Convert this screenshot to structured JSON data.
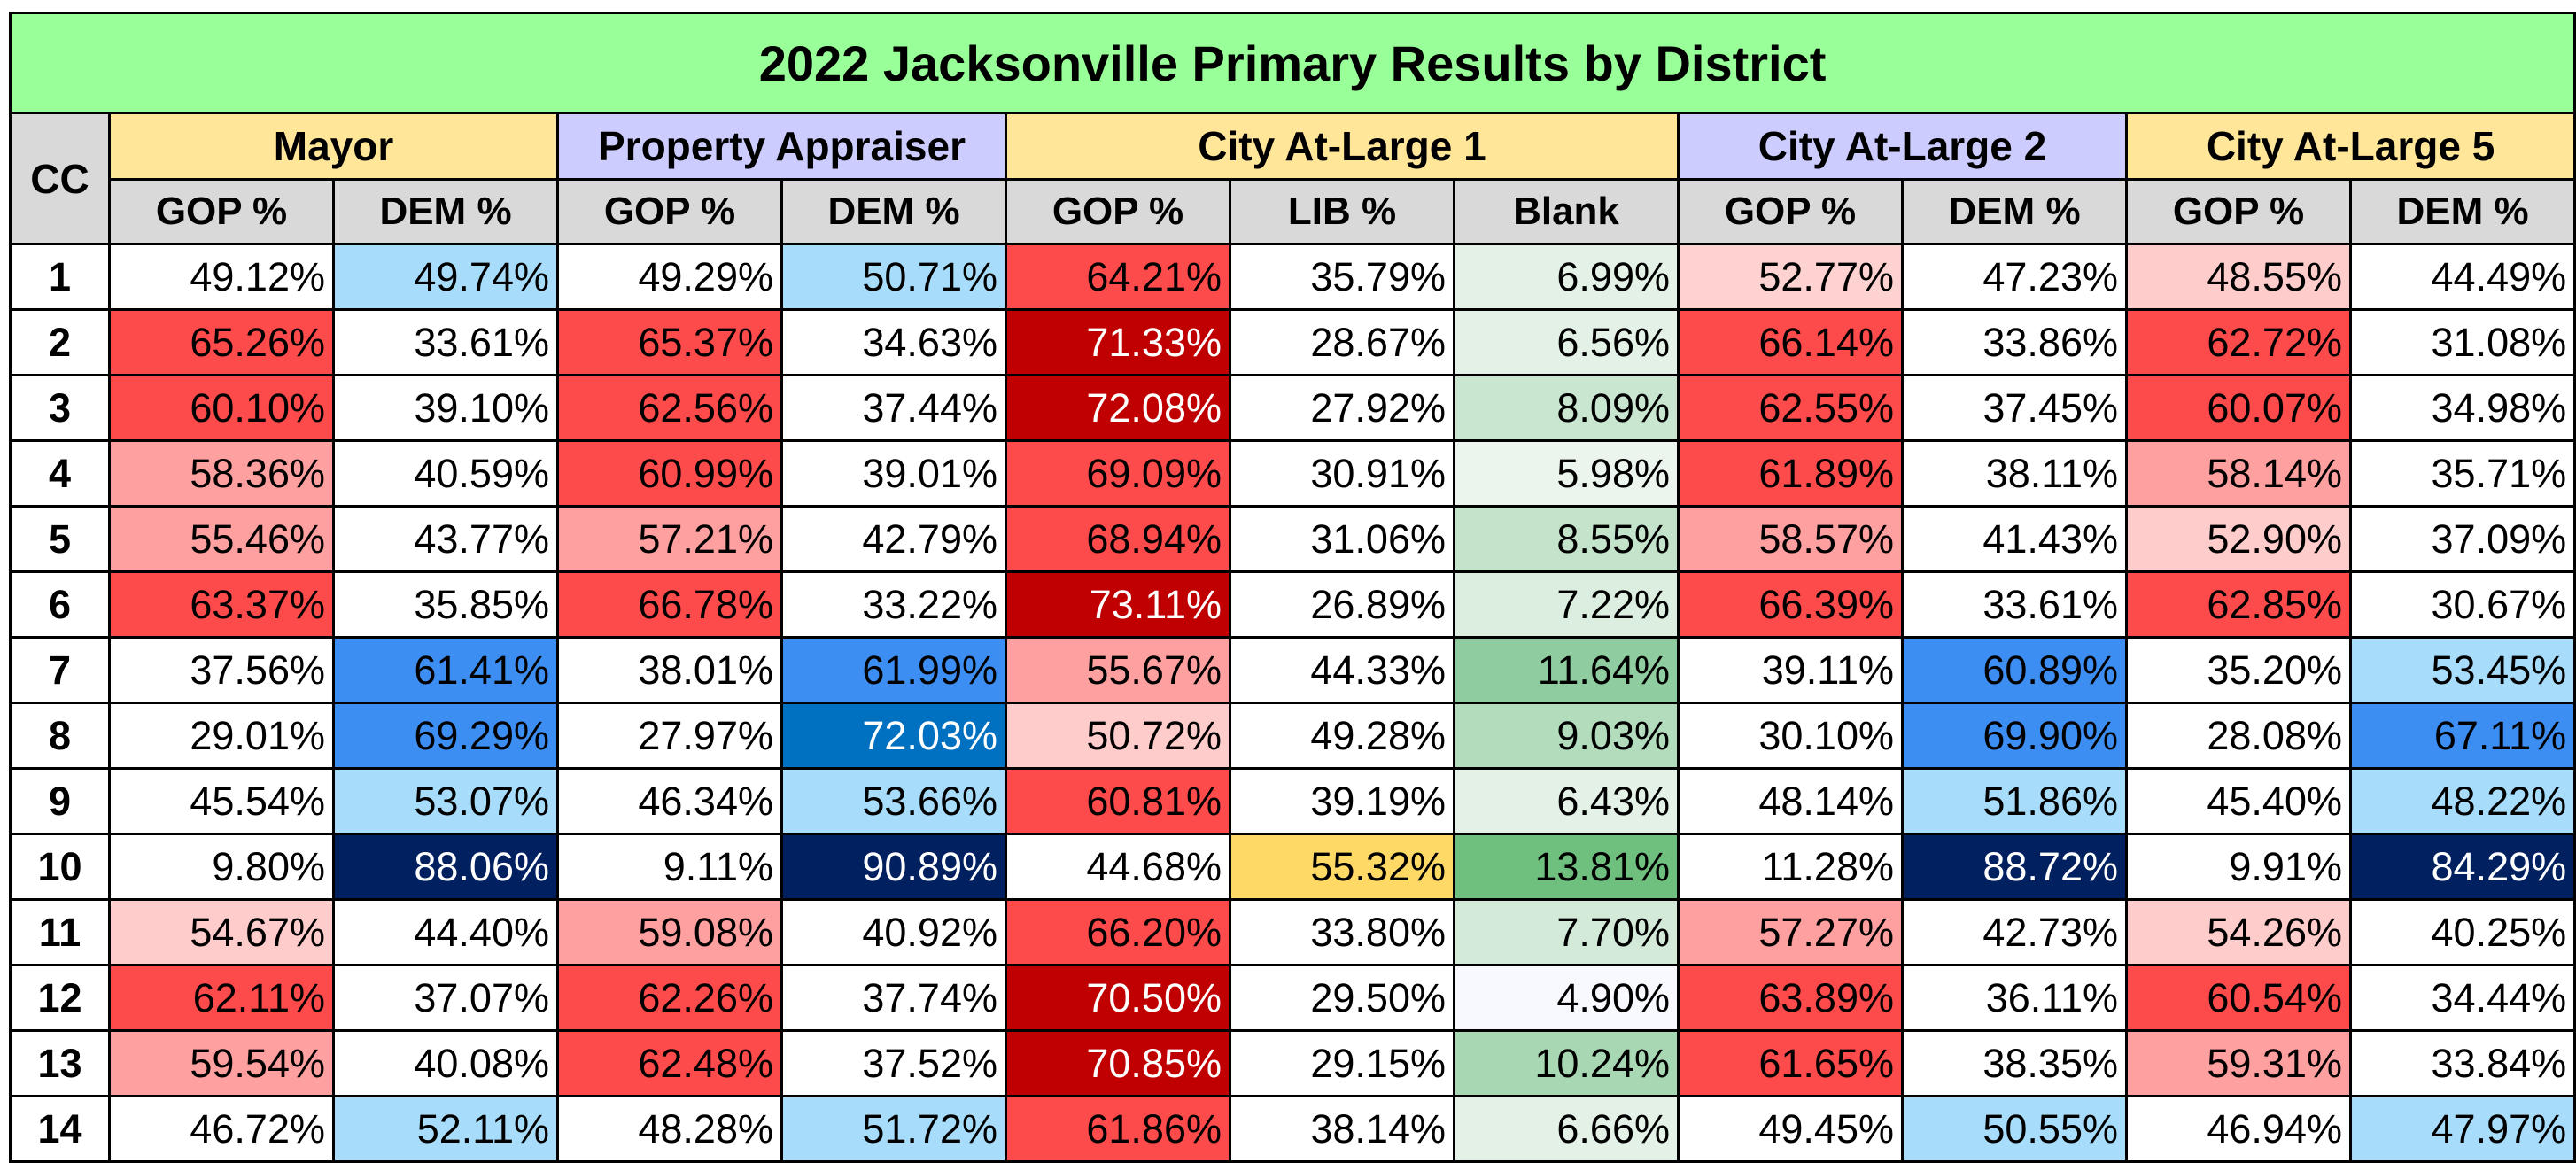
{
  "title": "2022 Jacksonville Primary Results by District",
  "cc_label": "CC",
  "races": [
    {
      "name": "Mayor",
      "color": "#ffe699",
      "columns": [
        "GOP %",
        "DEM %"
      ]
    },
    {
      "name": "Property Appraiser",
      "color": "#ccccff",
      "columns": [
        "GOP %",
        "DEM %"
      ]
    },
    {
      "name": "City At-Large 1",
      "color": "#ffe699",
      "columns": [
        "GOP %",
        "LIB %",
        "Blank"
      ]
    },
    {
      "name": "City At-Large 2",
      "color": "#ccccff",
      "columns": [
        "GOP %",
        "DEM %"
      ]
    },
    {
      "name": "City At-Large 5",
      "color": "#ffe699",
      "columns": [
        "GOP %",
        "DEM %"
      ]
    }
  ],
  "rows": [
    {
      "cc": "1",
      "values": [
        "49.12%",
        "49.74%",
        "49.29%",
        "50.71%",
        "64.21%",
        "35.79%",
        "6.99%",
        "52.77%",
        "47.23%",
        "48.55%",
        "44.49%"
      ]
    },
    {
      "cc": "2",
      "values": [
        "65.26%",
        "33.61%",
        "65.37%",
        "34.63%",
        "71.33%",
        "28.67%",
        "6.56%",
        "66.14%",
        "33.86%",
        "62.72%",
        "31.08%"
      ]
    },
    {
      "cc": "3",
      "values": [
        "60.10%",
        "39.10%",
        "62.56%",
        "37.44%",
        "72.08%",
        "27.92%",
        "8.09%",
        "62.55%",
        "37.45%",
        "60.07%",
        "34.98%"
      ]
    },
    {
      "cc": "4",
      "values": [
        "58.36%",
        "40.59%",
        "60.99%",
        "39.01%",
        "69.09%",
        "30.91%",
        "5.98%",
        "61.89%",
        "38.11%",
        "58.14%",
        "35.71%"
      ]
    },
    {
      "cc": "5",
      "values": [
        "55.46%",
        "43.77%",
        "57.21%",
        "42.79%",
        "68.94%",
        "31.06%",
        "8.55%",
        "58.57%",
        "41.43%",
        "52.90%",
        "37.09%"
      ]
    },
    {
      "cc": "6",
      "values": [
        "63.37%",
        "35.85%",
        "66.78%",
        "33.22%",
        "73.11%",
        "26.89%",
        "7.22%",
        "66.39%",
        "33.61%",
        "62.85%",
        "30.67%"
      ]
    },
    {
      "cc": "7",
      "values": [
        "37.56%",
        "61.41%",
        "38.01%",
        "61.99%",
        "55.67%",
        "44.33%",
        "11.64%",
        "39.11%",
        "60.89%",
        "35.20%",
        "53.45%"
      ]
    },
    {
      "cc": "8",
      "values": [
        "29.01%",
        "69.29%",
        "27.97%",
        "72.03%",
        "50.72%",
        "49.28%",
        "9.03%",
        "30.10%",
        "69.90%",
        "28.08%",
        "67.11%"
      ]
    },
    {
      "cc": "9",
      "values": [
        "45.54%",
        "53.07%",
        "46.34%",
        "53.66%",
        "60.81%",
        "39.19%",
        "6.43%",
        "48.14%",
        "51.86%",
        "45.40%",
        "48.22%"
      ]
    },
    {
      "cc": "10",
      "values": [
        "9.80%",
        "88.06%",
        "9.11%",
        "90.89%",
        "44.68%",
        "55.32%",
        "13.81%",
        "11.28%",
        "88.72%",
        "9.91%",
        "84.29%"
      ]
    },
    {
      "cc": "11",
      "values": [
        "54.67%",
        "44.40%",
        "59.08%",
        "40.92%",
        "66.20%",
        "33.80%",
        "7.70%",
        "57.27%",
        "42.73%",
        "54.26%",
        "40.25%"
      ]
    },
    {
      "cc": "12",
      "values": [
        "62.11%",
        "37.07%",
        "62.26%",
        "37.74%",
        "70.50%",
        "29.50%",
        "4.90%",
        "63.89%",
        "36.11%",
        "60.54%",
        "34.44%"
      ]
    },
    {
      "cc": "13",
      "values": [
        "59.54%",
        "40.08%",
        "62.48%",
        "37.52%",
        "70.85%",
        "29.15%",
        "10.24%",
        "61.65%",
        "38.35%",
        "59.31%",
        "33.84%"
      ]
    },
    {
      "cc": "14",
      "values": [
        "46.72%",
        "52.11%",
        "48.28%",
        "51.72%",
        "61.86%",
        "38.14%",
        "6.66%",
        "49.45%",
        "50.55%",
        "46.94%",
        "47.97%"
      ]
    }
  ],
  "cell_colors": [
    [
      "#ffffff",
      "#a8dcfb",
      "#ffffff",
      "#a8dcfb",
      "#fd4a4a",
      "#ffffff",
      "#e3f1e6",
      "#ffd2d2",
      "#ffffff",
      "#ffcccc",
      "#ffffff"
    ],
    [
      "#fd4a4a",
      "#ffffff",
      "#fd4a4a",
      "#ffffff",
      "#c00000",
      "#ffffff",
      "#e3f1e6",
      "#fd4a4a",
      "#ffffff",
      "#fd4a4a",
      "#ffffff"
    ],
    [
      "#fd4a4a",
      "#ffffff",
      "#fd4a4a",
      "#ffffff",
      "#c00000",
      "#ffffff",
      "#c9e6d0",
      "#fd4a4a",
      "#ffffff",
      "#fd4a4a",
      "#ffffff"
    ],
    [
      "#ffa0a0",
      "#ffffff",
      "#fd4a4a",
      "#ffffff",
      "#fd4a4a",
      "#ffffff",
      "#ebf5ed",
      "#fd4a4a",
      "#ffffff",
      "#ffa0a0",
      "#ffffff"
    ],
    [
      "#ffa0a0",
      "#ffffff",
      "#ffa0a0",
      "#ffffff",
      "#fd4a4a",
      "#ffffff",
      "#c3e3ca",
      "#ffa0a0",
      "#ffffff",
      "#ffcccc",
      "#ffffff"
    ],
    [
      "#fd4a4a",
      "#ffffff",
      "#fd4a4a",
      "#ffffff",
      "#c00000",
      "#ffffff",
      "#dbeedf",
      "#fd4a4a",
      "#ffffff",
      "#fd4a4a",
      "#ffffff"
    ],
    [
      "#ffffff",
      "#3d8ef2",
      "#ffffff",
      "#3d8ef2",
      "#ffa0a0",
      "#ffffff",
      "#8fcc9f",
      "#ffffff",
      "#3d8ef2",
      "#ffffff",
      "#a8dcfb"
    ],
    [
      "#ffffff",
      "#3d8ef2",
      "#ffffff",
      "#0070c0",
      "#ffcccc",
      "#ffffff",
      "#b3dcbd",
      "#ffffff",
      "#3d8ef2",
      "#ffffff",
      "#3d8ef2"
    ],
    [
      "#ffffff",
      "#a8dcfb",
      "#ffffff",
      "#a8dcfb",
      "#fd4a4a",
      "#ffffff",
      "#e3f1e6",
      "#ffffff",
      "#a8dcfb",
      "#ffffff",
      "#a8dcfb"
    ],
    [
      "#ffffff",
      "#002060",
      "#ffffff",
      "#002060",
      "#ffffff",
      "#ffd966",
      "#6fbf7f",
      "#ffffff",
      "#002060",
      "#ffffff",
      "#002060"
    ],
    [
      "#ffcccc",
      "#ffffff",
      "#ffa0a0",
      "#ffffff",
      "#fd4a4a",
      "#ffffff",
      "#d2ead7",
      "#ffa0a0",
      "#ffffff",
      "#ffcccc",
      "#ffffff"
    ],
    [
      "#fd4a4a",
      "#ffffff",
      "#fd4a4a",
      "#ffffff",
      "#c00000",
      "#ffffff",
      "#f8f8ff",
      "#fd4a4a",
      "#ffffff",
      "#fd4a4a",
      "#ffffff"
    ],
    [
      "#ffa0a0",
      "#ffffff",
      "#fd4a4a",
      "#ffffff",
      "#c00000",
      "#ffffff",
      "#a8d8b3",
      "#fd4a4a",
      "#ffffff",
      "#ffa0a0",
      "#ffffff"
    ],
    [
      "#ffffff",
      "#a8dcfb",
      "#ffffff",
      "#a8dcfb",
      "#fd4a4a",
      "#ffffff",
      "#e3f1e6",
      "#ffffff",
      "#a8dcfb",
      "#ffffff",
      "#a8dcfb"
    ]
  ],
  "text_colors": {
    "light_on_dark": "#ffffff",
    "default": "#000000"
  }
}
